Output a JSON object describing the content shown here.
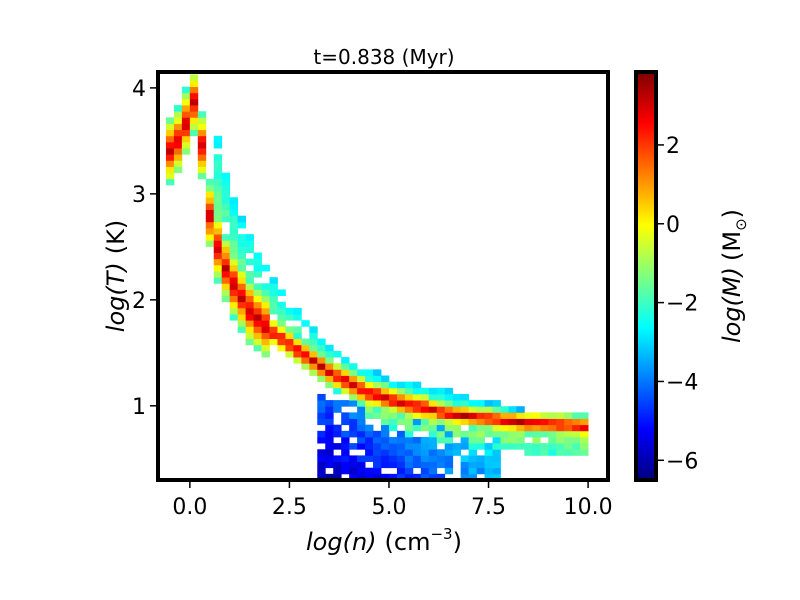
{
  "chart_data": {
    "type": "heatmap",
    "title": "t=0.838 (Myr)",
    "xlabel": {
      "var": "log(n)",
      "unit": "(cm",
      "exp": "−3",
      "close": ")"
    },
    "ylabel": {
      "var": "log(T)",
      "unit": "(K)"
    },
    "colorbar_label": {
      "var": "log(M)",
      "unit": "(M",
      "sub": "⊙",
      "close": ")"
    },
    "x_range": [
      -0.8,
      10.5
    ],
    "y_range": [
      0.3,
      4.15
    ],
    "c_range": [
      -6.5,
      3.85
    ],
    "x_ticks": [
      {
        "v": 0.0,
        "label": "0.0"
      },
      {
        "v": 2.5,
        "label": "2.5"
      },
      {
        "v": 5.0,
        "label": "5.0"
      },
      {
        "v": 7.5,
        "label": "7.5"
      },
      {
        "v": 10.0,
        "label": "10.0"
      }
    ],
    "y_ticks": [
      {
        "v": 1,
        "label": "1"
      },
      {
        "v": 2,
        "label": "2"
      },
      {
        "v": 3,
        "label": "3"
      },
      {
        "v": 4,
        "label": "4"
      }
    ],
    "c_ticks": [
      {
        "v": 2,
        "label": "2"
      },
      {
        "v": 0,
        "label": "0"
      },
      {
        "v": -2,
        "label": "−2"
      },
      {
        "v": -4,
        "label": "−4"
      },
      {
        "v": -6,
        "label": "−6"
      }
    ],
    "colormap": "jet",
    "bin_size": {
      "dx": 0.2,
      "dy": 0.058
    },
    "main_track": [
      {
        "x": -0.7,
        "y": 3.3
      },
      {
        "x": -0.2,
        "y": 3.55
      },
      {
        "x": 0.05,
        "y": 3.85
      },
      {
        "x": 0.2,
        "y": 3.9
      },
      {
        "x": 0.4,
        "y": 3.0
      },
      {
        "x": 0.6,
        "y": 2.6
      },
      {
        "x": 1.0,
        "y": 2.2
      },
      {
        "x": 1.5,
        "y": 1.9
      },
      {
        "x": 2.0,
        "y": 1.72
      },
      {
        "x": 2.5,
        "y": 1.58
      },
      {
        "x": 3.0,
        "y": 1.45
      },
      {
        "x": 3.5,
        "y": 1.32
      },
      {
        "x": 4.0,
        "y": 1.22
      },
      {
        "x": 4.5,
        "y": 1.12
      },
      {
        "x": 5.0,
        "y": 1.07
      },
      {
        "x": 5.5,
        "y": 1.01
      },
      {
        "x": 6.0,
        "y": 0.97
      },
      {
        "x": 6.5,
        "y": 0.93
      },
      {
        "x": 7.0,
        "y": 0.9
      },
      {
        "x": 7.5,
        "y": 0.88
      },
      {
        "x": 8.0,
        "y": 0.86
      },
      {
        "x": 8.5,
        "y": 0.84
      },
      {
        "x": 9.0,
        "y": 0.83
      },
      {
        "x": 9.5,
        "y": 0.82
      },
      {
        "x": 10.0,
        "y": 0.8
      }
    ],
    "upper_track": [
      {
        "x": 0.6,
        "y": 3.7
      },
      {
        "x": 1.0,
        "y": 3.0
      },
      {
        "x": 1.5,
        "y": 2.55
      },
      {
        "x": 2.0,
        "y": 2.2
      },
      {
        "x": 2.5,
        "y": 1.95
      },
      {
        "x": 3.0,
        "y": 1.72
      },
      {
        "x": 3.5,
        "y": 1.55
      },
      {
        "x": 4.0,
        "y": 1.4
      },
      {
        "x": 4.5,
        "y": 1.3
      },
      {
        "x": 5.0,
        "y": 1.22
      },
      {
        "x": 5.5,
        "y": 1.18
      },
      {
        "x": 6.0,
        "y": 1.14
      },
      {
        "x": 6.5,
        "y": 1.1
      },
      {
        "x": 7.0,
        "y": 1.04
      },
      {
        "x": 7.5,
        "y": 1.0
      },
      {
        "x": 8.0,
        "y": 0.96
      },
      {
        "x": 8.5,
        "y": 0.92
      }
    ],
    "cold_region": {
      "x_min": 3.2,
      "x_max": 7.8,
      "y_min": 0.32,
      "y_max": 1.1,
      "c_min": -6.2,
      "c_max": -1.5
    }
  }
}
